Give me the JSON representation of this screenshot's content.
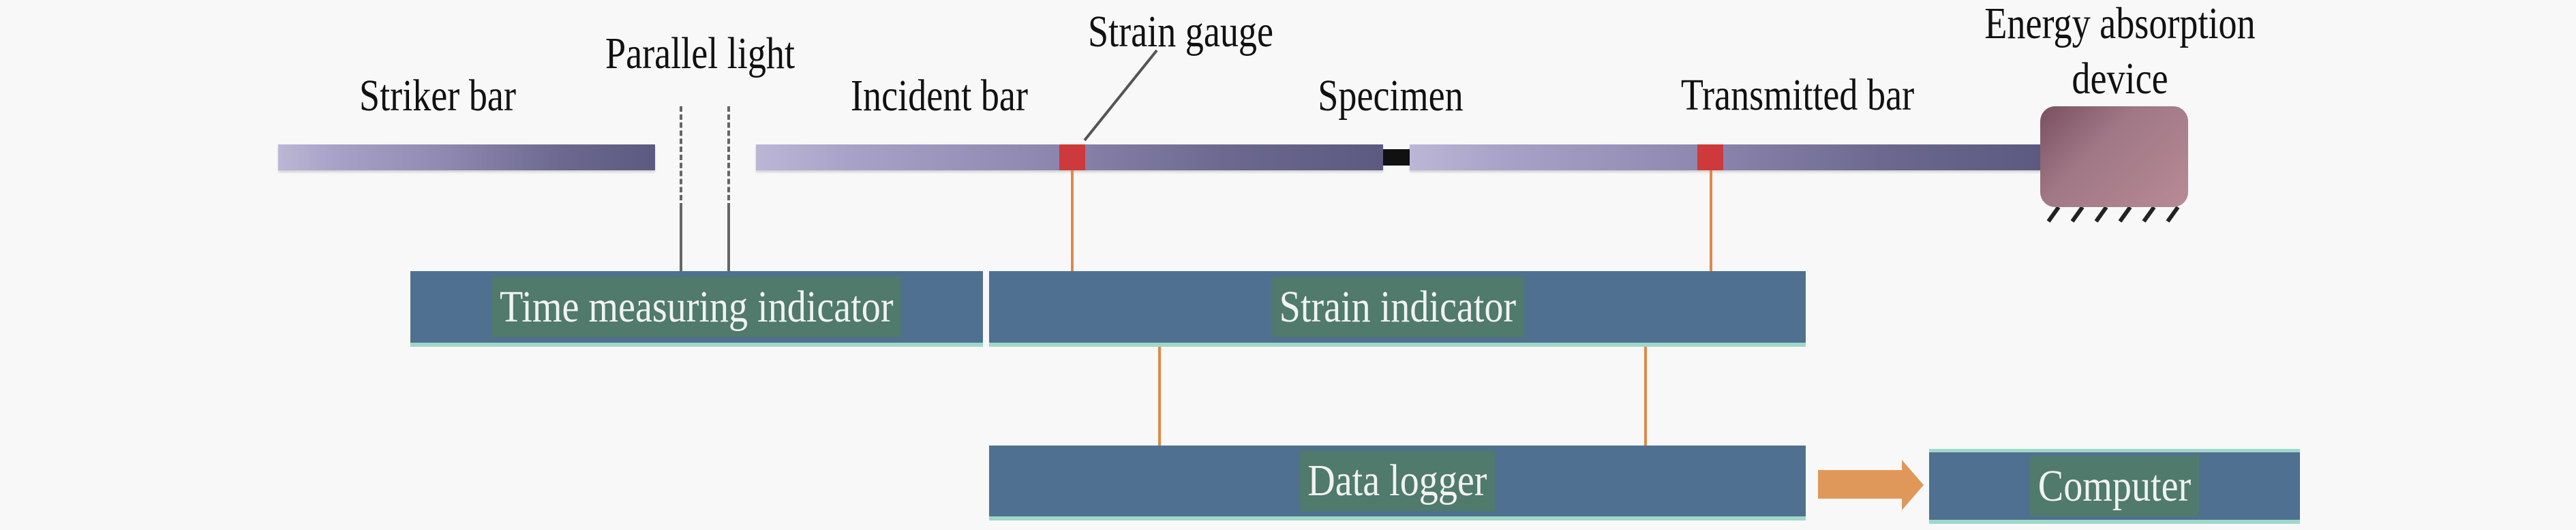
{
  "labels": {
    "striker_bar": "Striker bar",
    "parallel_light": "Parallel light",
    "incident_bar": "Incident bar",
    "strain_gauge": "Strain gauge",
    "specimen": "Specimen",
    "transmitted_bar": "Transmitted bar",
    "energy_absorption_line1": "Energy absorption",
    "energy_absorption_line2": "device"
  },
  "boxes": {
    "time_measuring": "Time measuring indicator",
    "strain_indicator": "Strain indicator",
    "data_logger": "Data logger",
    "computer": "Computer"
  },
  "colors": {
    "box": "#4f7090",
    "wire": "#e08848",
    "gauge": "#cc3a3c",
    "absorber": "#a87884",
    "arrow": "#e0985a"
  }
}
